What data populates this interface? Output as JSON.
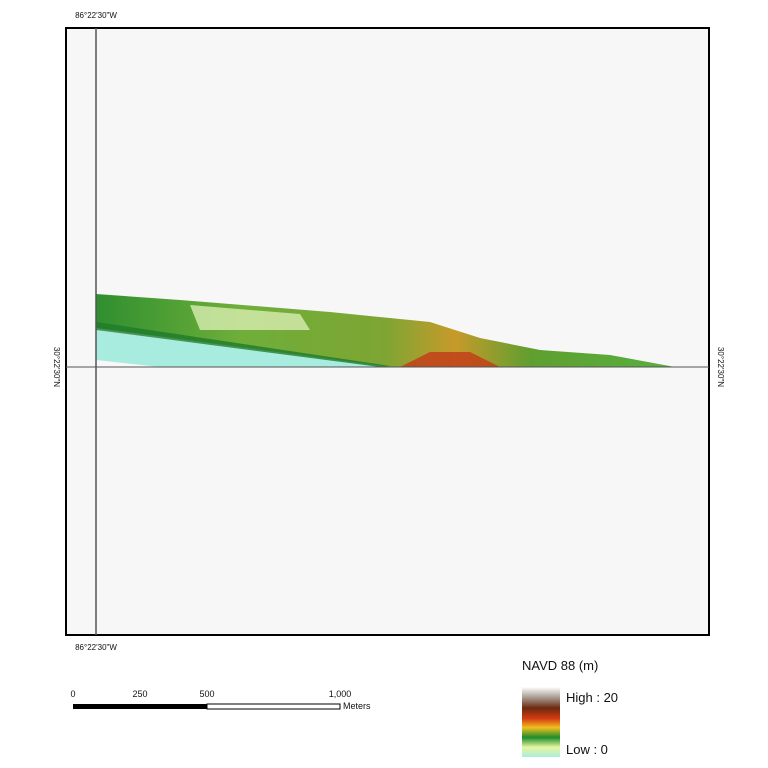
{
  "graticule": {
    "top_label": "86°22'30\"W",
    "bottom_label": "86°22'30\"W",
    "left_label": "30°22'30\"N",
    "right_label": "30°22'30\"N"
  },
  "scale_bar": {
    "ticks": [
      "0",
      "250",
      "500",
      "1,000"
    ],
    "unit": "Meters"
  },
  "legend": {
    "title": "NAVD 88 (m)",
    "high": "High : 20",
    "low": "Low : 0"
  }
}
